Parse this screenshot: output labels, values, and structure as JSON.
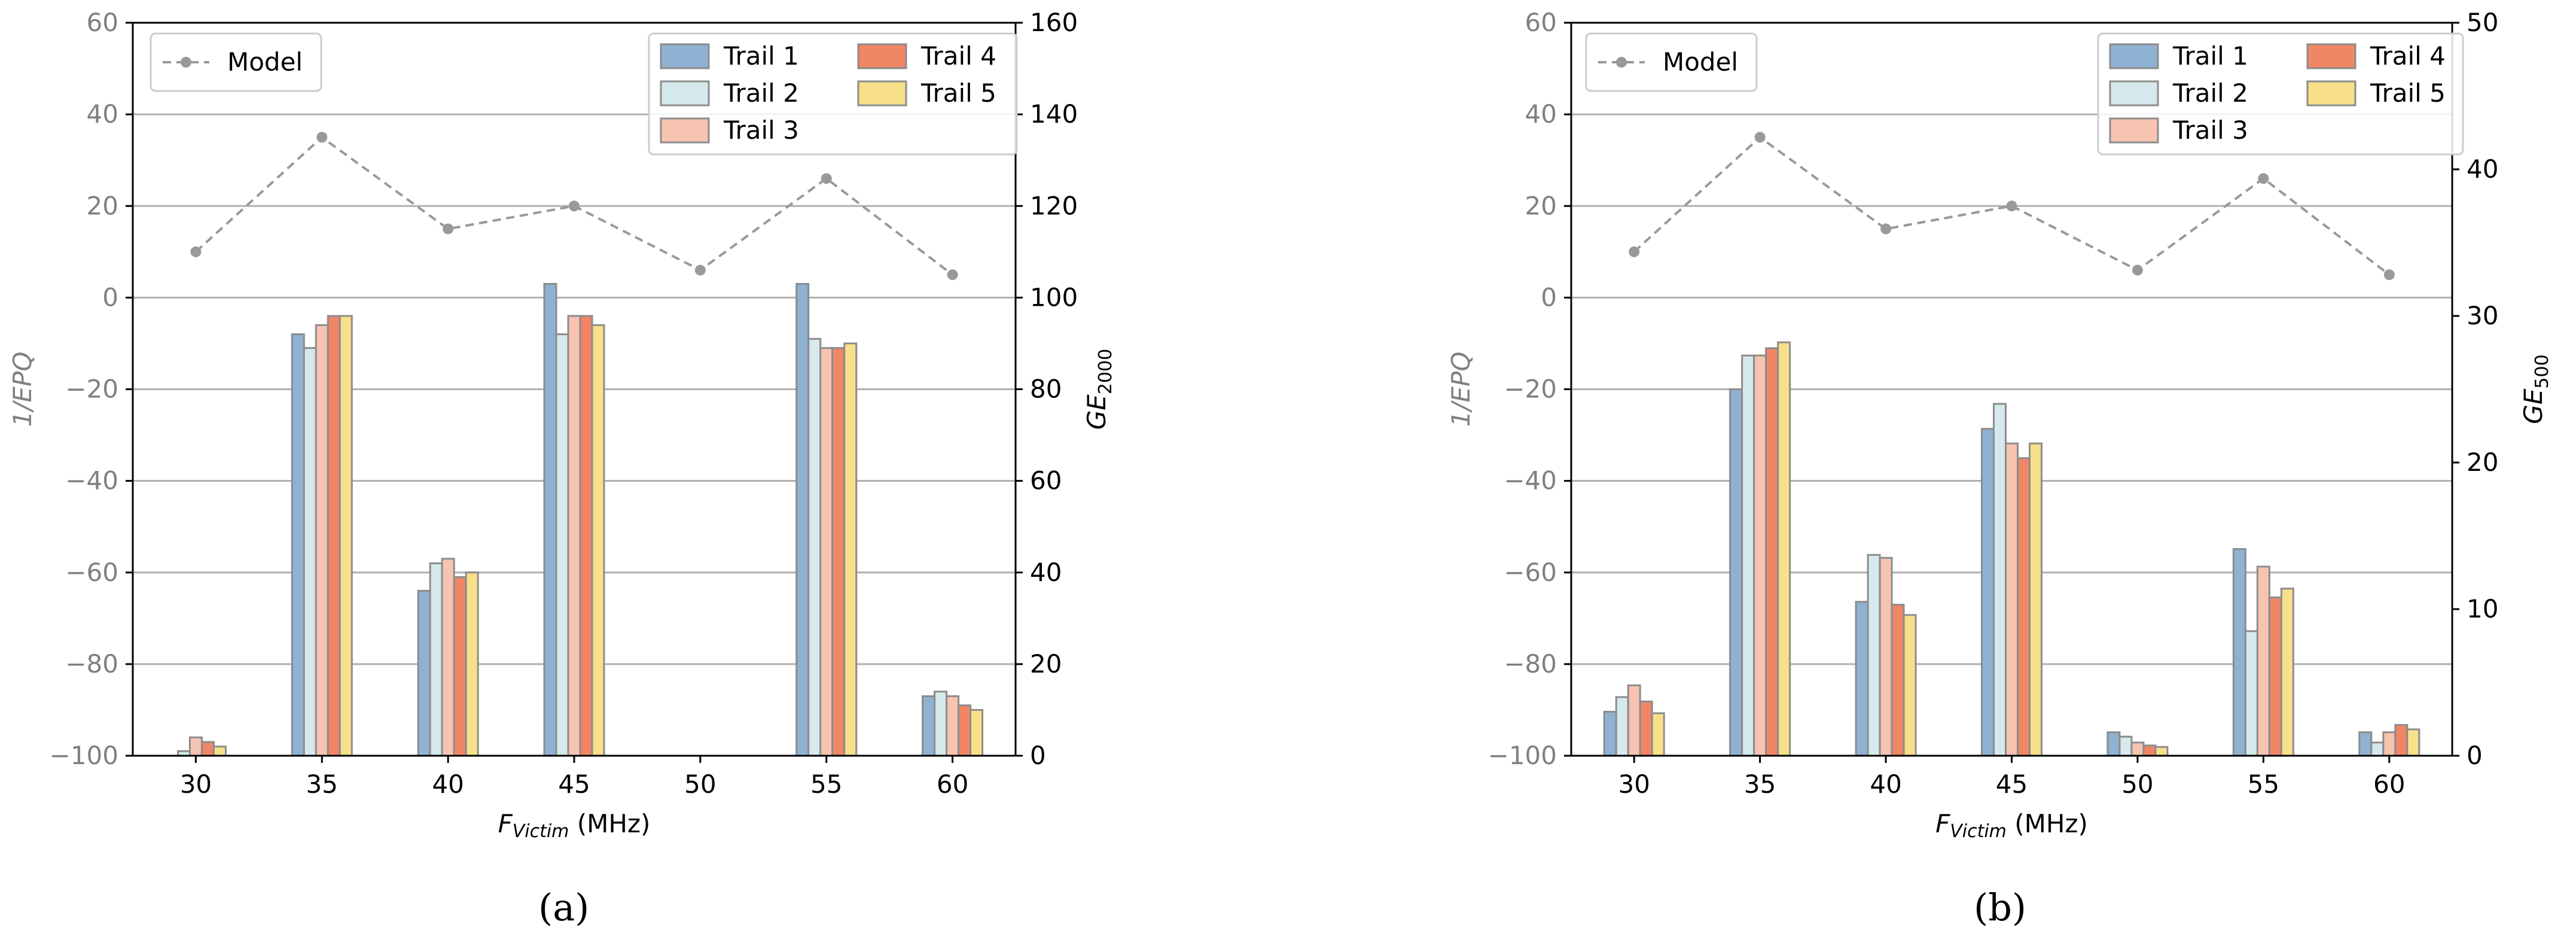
{
  "colors": {
    "trail_fill": [
      "#8fb2d2",
      "#d6e9ec",
      "#f7c4b1",
      "#f08666",
      "#f8df8a"
    ],
    "trail_edge": "#8c8c8c",
    "model": "#999999",
    "axis_text_left": "#808080",
    "axis_text": "#000000",
    "grid": "#b0b0b0"
  },
  "captions": [
    "(a)",
    "(b)"
  ],
  "chart_data": [
    {
      "type": "bar",
      "panel": "a",
      "categories": [
        "30",
        "35",
        "40",
        "45",
        "50",
        "55",
        "60"
      ],
      "xlabel_main": "F",
      "xlabel_sub": "Victim",
      "xlabel_unit": " (MHz)",
      "ylabel_left": "1/EPQ",
      "ylabel_right_main": "GE",
      "ylabel_right_sub": "2000",
      "ylim_left": [
        -100,
        60
      ],
      "yticks_left": [
        "60",
        "40",
        "20",
        "0",
        "−20",
        "−40",
        "−60",
        "−80",
        "−100"
      ],
      "ylim_right": [
        0,
        160
      ],
      "yticks_right": [
        "160",
        "140",
        "120",
        "100",
        "80",
        "60",
        "40",
        "20",
        "0"
      ],
      "grid": "horizontal",
      "model": {
        "name": "Model",
        "values": [
          10,
          35,
          15,
          20,
          6,
          26,
          5
        ]
      },
      "series": [
        {
          "name": "Trail 1",
          "values": [
            0,
            92,
            36,
            103,
            0,
            103,
            13
          ]
        },
        {
          "name": "Trail 2",
          "values": [
            1,
            89,
            42,
            92,
            0,
            91,
            14
          ]
        },
        {
          "name": "Trail 3",
          "values": [
            4,
            94,
            43,
            96,
            0,
            89,
            13
          ]
        },
        {
          "name": "Trail 4",
          "values": [
            3,
            96,
            39,
            96,
            0,
            89,
            11
          ]
        },
        {
          "name": "Trail 5",
          "values": [
            2,
            96,
            40,
            94,
            0,
            90,
            10
          ]
        }
      ]
    },
    {
      "type": "bar",
      "panel": "b",
      "categories": [
        "30",
        "35",
        "40",
        "45",
        "50",
        "55",
        "60"
      ],
      "xlabel_main": "F",
      "xlabel_sub": "Victim",
      "xlabel_unit": " (MHz)",
      "ylabel_left": "1/EPQ",
      "ylabel_right_main": "GE",
      "ylabel_right_sub": "500",
      "ylim_left": [
        -100,
        60
      ],
      "yticks_left": [
        "60",
        "40",
        "20",
        "0",
        "−20",
        "−40",
        "−60",
        "−80",
        "−100"
      ],
      "ylim_right": [
        0,
        50
      ],
      "yticks_right": [
        "50",
        "40",
        "30",
        "20",
        "10",
        "0"
      ],
      "grid": "horizontal",
      "model": {
        "name": "Model",
        "values": [
          10,
          35,
          15,
          20,
          6,
          26,
          5
        ]
      },
      "series": [
        {
          "name": "Trail 1",
          "values": [
            3,
            25,
            10.5,
            22.3,
            1.6,
            14.1,
            1.6
          ]
        },
        {
          "name": "Trail 2",
          "values": [
            4,
            27.3,
            13.7,
            24,
            1.3,
            8.5,
            0.9
          ]
        },
        {
          "name": "Trail 3",
          "values": [
            4.8,
            27.3,
            13.5,
            21.3,
            0.9,
            12.9,
            1.6
          ]
        },
        {
          "name": "Trail 4",
          "values": [
            3.7,
            27.8,
            10.3,
            20.3,
            0.7,
            10.8,
            2.1
          ]
        },
        {
          "name": "Trail 5",
          "values": [
            2.9,
            28.2,
            9.6,
            21.3,
            0.6,
            11.4,
            1.8
          ]
        }
      ]
    }
  ]
}
